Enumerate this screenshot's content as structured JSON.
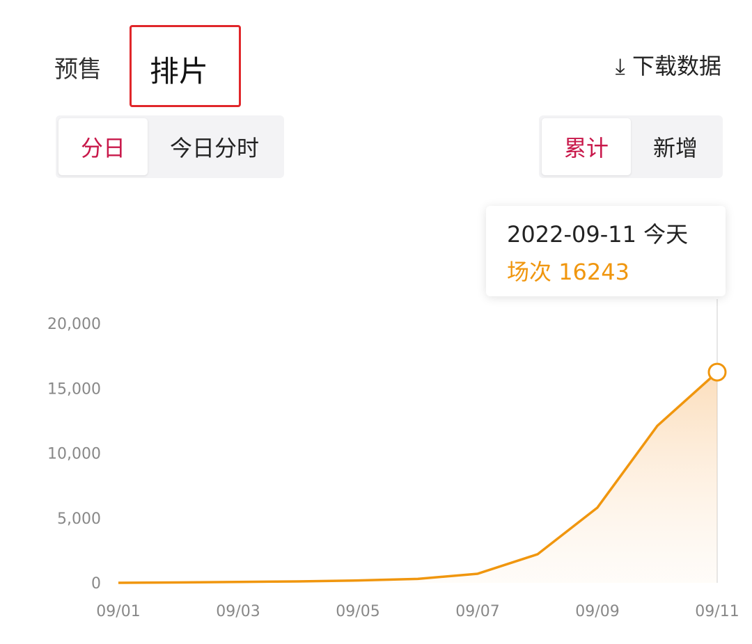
{
  "tabs": [
    "预售",
    "排片"
  ],
  "download_label": "下载数据",
  "mode_toggle": [
    "分日",
    "今日分时"
  ],
  "agg_toggle": [
    "累计",
    "新增"
  ],
  "tooltip": {
    "date": "2022-09-11",
    "today": "今天",
    "label": "场次",
    "value": "16243"
  },
  "colors": {
    "accent": "#c8184a",
    "line": "#f0960e",
    "highlight": "#e0262a"
  },
  "chart_data": {
    "type": "area",
    "x": [
      "09/01",
      "09/02",
      "09/03",
      "09/04",
      "09/05",
      "09/06",
      "09/07",
      "09/08",
      "09/09",
      "09/10",
      "09/11"
    ],
    "xticks": [
      "09/01",
      "09/03",
      "09/05",
      "09/07",
      "09/09",
      "09/11"
    ],
    "values": [
      0,
      30,
      70,
      110,
      180,
      300,
      700,
      2200,
      5800,
      12100,
      16243
    ],
    "yticks": [
      "0",
      "5,000",
      "10,000",
      "15,000",
      "20,000"
    ],
    "ylim": [
      0,
      20000
    ],
    "grid": false
  }
}
